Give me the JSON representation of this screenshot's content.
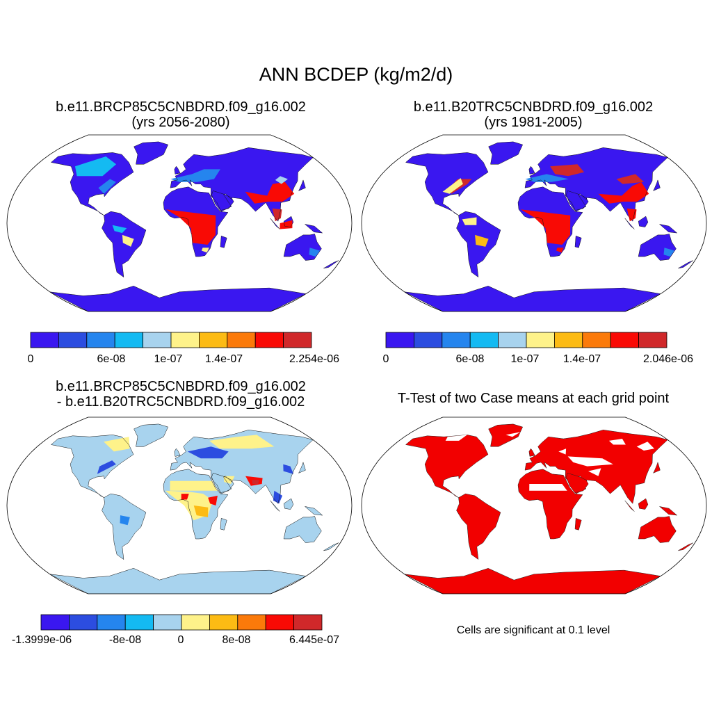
{
  "figure": {
    "title": "ANN BCDEP (kg/m2/d)"
  },
  "panels": [
    {
      "id": "case",
      "title_line1": "b.e11.BRCP85C5CNBDRD.f09_g16.002",
      "title_line2": "(yrs 2056-2080)",
      "colorbar": {
        "colors": [
          "#3a17f0",
          "#2c4de0",
          "#2585ee",
          "#14baf2",
          "#a8d3ee",
          "#fef28a",
          "#fcbb14",
          "#fb7a0a",
          "#f90a05",
          "#d0282a"
        ],
        "labels": [
          "0",
          "6e-08",
          "1e-07",
          "1.4e-07",
          "2.254e-06"
        ]
      }
    },
    {
      "id": "control",
      "title_line1": "b.e11.B20TRC5CNBDRD.f09_g16.002",
      "title_line2": "(yrs 1981-2005)",
      "colorbar": {
        "colors": [
          "#3a17f0",
          "#2c4de0",
          "#2585ee",
          "#14baf2",
          "#a8d3ee",
          "#fef28a",
          "#fcbb14",
          "#fb7a0a",
          "#f90a05",
          "#d0282a"
        ],
        "labels": [
          "0",
          "6e-08",
          "1e-07",
          "1.4e-07",
          "2.046e-06"
        ]
      }
    },
    {
      "id": "difference",
      "title_line1": "b.e11.BRCP85C5CNBDRD.f09_g16.002",
      "title_line2": "- b.e11.B20TRC5CNBDRD.f09_g16.002",
      "colorbar": {
        "colors": [
          "#3a17f0",
          "#2c4de0",
          "#2585ee",
          "#14baf2",
          "#a8d3ee",
          "#fef28a",
          "#fcbb14",
          "#fb7a0a",
          "#f90a05",
          "#d0282a"
        ],
        "labels": [
          "-1.3999e-06",
          "-8e-08",
          "0",
          "8e-08",
          "6.445e-07"
        ]
      }
    },
    {
      "id": "ttest",
      "title_line1": "T-Test of two Case means at each grid point",
      "note": "Cells are significant at 0.1 level",
      "fill_color": "#f20000"
    }
  ]
}
